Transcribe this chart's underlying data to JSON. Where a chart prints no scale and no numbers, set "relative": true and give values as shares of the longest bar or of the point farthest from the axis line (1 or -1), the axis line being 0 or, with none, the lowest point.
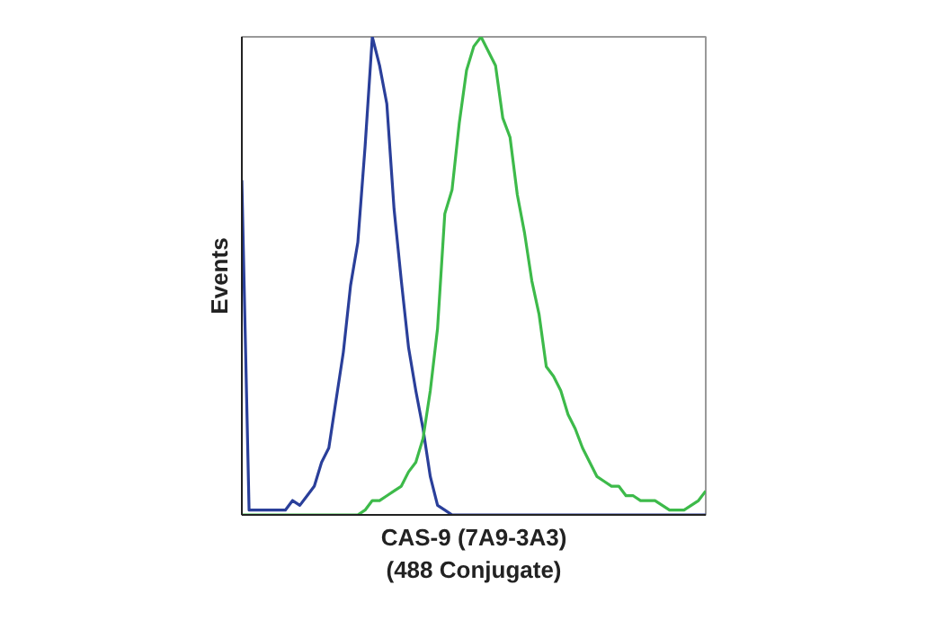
{
  "chart_data": {
    "type": "line",
    "relative": true,
    "xlabel": "CAS-9 (7A9-3A3)\n(488 Conjugate)",
    "ylabel": "Events",
    "categories": [
      null,
      null,
      null,
      null,
      null,
      null,
      null,
      null,
      null,
      null,
      null,
      null,
      null,
      null,
      null,
      null,
      null,
      null,
      null,
      null,
      null,
      null,
      null,
      null,
      null,
      null,
      null,
      null,
      null,
      null,
      null,
      null,
      null,
      null,
      null,
      null,
      null,
      null,
      null,
      null,
      null,
      null,
      null,
      null,
      null,
      null,
      null,
      null,
      null,
      null,
      null,
      null,
      null,
      null,
      null,
      null,
      null,
      null,
      null,
      null,
      null,
      null,
      null,
      null,
      null
    ],
    "series": [
      {
        "color": "#2a3f9a",
        "values": [
          0.7,
          0.01,
          0.01,
          0.01,
          0.01,
          0.01,
          0.01,
          0.03,
          0.02,
          0.04,
          0.06,
          0.11,
          0.14,
          0.24,
          0.34,
          0.48,
          0.57,
          0.77,
          1.0,
          0.94,
          0.86,
          0.64,
          0.49,
          0.35,
          0.26,
          0.18,
          0.08,
          0.02,
          0.01,
          0,
          0,
          0,
          0,
          0,
          0,
          0,
          0,
          0,
          0,
          0,
          0,
          0,
          0,
          0,
          0,
          0,
          0,
          0,
          0,
          0,
          0,
          0,
          0,
          0,
          0,
          0,
          0,
          0,
          0,
          0,
          0,
          0,
          0,
          0,
          0
        ]
      },
      {
        "color": "#3dba4a",
        "values": [
          0,
          0,
          0,
          0,
          0,
          0,
          0,
          0,
          0,
          0,
          0,
          0,
          0,
          0,
          0,
          0,
          0,
          0.01,
          0.03,
          0.03,
          0.04,
          0.05,
          0.06,
          0.09,
          0.11,
          0.16,
          0.26,
          0.39,
          0.63,
          0.68,
          0.82,
          0.93,
          0.98,
          1.0,
          0.97,
          0.94,
          0.83,
          0.79,
          0.67,
          0.59,
          0.49,
          0.42,
          0.31,
          0.29,
          0.26,
          0.21,
          0.18,
          0.14,
          0.11,
          0.08,
          0.07,
          0.06,
          0.06,
          0.04,
          0.04,
          0.03,
          0.03,
          0.03,
          0.02,
          0.01,
          0.01,
          0.01,
          0.02,
          0.03,
          0.05
        ]
      }
    ]
  }
}
